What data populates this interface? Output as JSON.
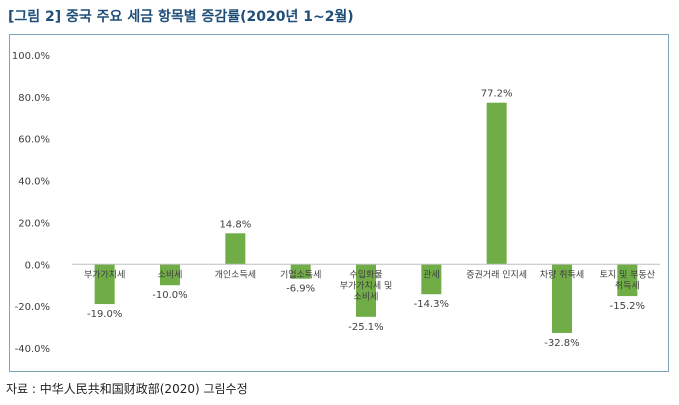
{
  "figure": {
    "title": "[그림 2] 중국 주요 세금 항목별 증감률(2020년 1~2월)",
    "source": "자료 : 中华人民共和国财政部(2020) 그림수정"
  },
  "colors": {
    "bar": "#70ad47",
    "title": "#1f4e79",
    "frame": "#7aa5b8",
    "axis": "#bfbfbf",
    "text": "#404040"
  },
  "chart_data": {
    "type": "bar",
    "title": "",
    "xlabel": "",
    "ylabel": "",
    "ylim": [
      -40,
      100
    ],
    "yticks": [
      "100.0%",
      "80.0%",
      "60.0%",
      "40.0%",
      "20.0%",
      "0.0%",
      "-20.0%",
      "-40.0%"
    ],
    "ytick_values": [
      100,
      80,
      60,
      40,
      20,
      0,
      -20,
      -40
    ],
    "grid": false,
    "legend": "none",
    "categories": [
      [
        "부가가치세"
      ],
      [
        "소비세"
      ],
      [
        "개인소득세"
      ],
      [
        "기업소득세"
      ],
      [
        "수입화물",
        "부가가치세 및",
        "소비세"
      ],
      [
        "관세"
      ],
      [
        "증권거래 인지세"
      ],
      [
        "차량 취득세"
      ],
      [
        "토지 및 부동산",
        "취득세"
      ]
    ],
    "values": [
      -19.0,
      -10.0,
      14.8,
      -6.9,
      -25.1,
      -14.3,
      77.2,
      -32.8,
      -15.2
    ],
    "data_labels": [
      "-19.0%",
      "-10.0%",
      "14.8%",
      "-6.9%",
      "-25.1%",
      "-14.3%",
      "77.2%",
      "-32.8%",
      "-15.2%"
    ]
  }
}
